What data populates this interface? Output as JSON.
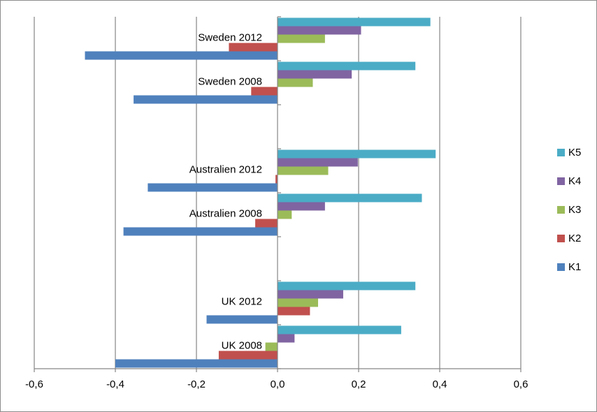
{
  "chart_data": {
    "type": "bar",
    "orientation": "horizontal",
    "title": "",
    "xlabel": "",
    "ylabel": "",
    "xlim": [
      -0.6,
      0.6
    ],
    "x_ticks": [
      -0.6,
      -0.4,
      -0.2,
      0.0,
      0.2,
      0.4,
      0.6
    ],
    "x_tick_labels": [
      "-0,6",
      "-0,4",
      "-0,2",
      "0,0",
      "0,2",
      "0,4",
      "0,6"
    ],
    "grid": "vertical major gridlines",
    "legend_position": "right",
    "categories": [
      "UK 2008",
      "UK 2012",
      "",
      "Australien 2008",
      "Australien 2012",
      "",
      "Sweden 2008",
      "Sweden 2012"
    ],
    "series": [
      {
        "name": "K1",
        "color": "#4f81bd",
        "values": [
          -0.4,
          -0.175,
          null,
          -0.38,
          -0.32,
          null,
          -0.355,
          -0.475
        ]
      },
      {
        "name": "K2",
        "color": "#c0504d",
        "values": [
          -0.145,
          0.08,
          null,
          -0.055,
          -0.005,
          null,
          -0.065,
          -0.12
        ]
      },
      {
        "name": "K3",
        "color": "#9bbb59",
        "values": [
          -0.03,
          0.1,
          null,
          0.035,
          0.125,
          null,
          0.087,
          0.117
        ]
      },
      {
        "name": "K4",
        "color": "#8064a2",
        "values": [
          0.042,
          0.162,
          null,
          0.117,
          0.198,
          null,
          0.183,
          0.206
        ]
      },
      {
        "name": "K5",
        "color": "#4bacc6",
        "values": [
          0.305,
          0.34,
          null,
          0.356,
          0.39,
          null,
          0.34,
          0.377
        ]
      }
    ]
  }
}
